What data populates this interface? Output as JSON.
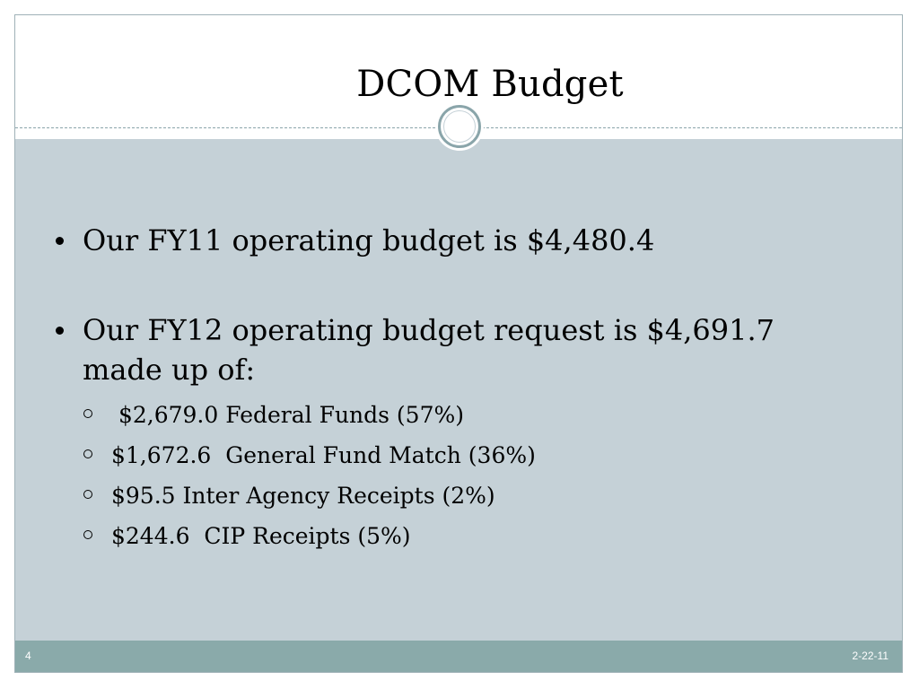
{
  "slide": {
    "title": "DCOM Budget",
    "bullets": [
      {
        "text": "Our FY11 operating budget is $4,480.4"
      },
      {
        "text": "Our FY12 operating budget request is $4,691.7 made up of:",
        "sub_items": [
          " $2,679.0 Federal Funds (57%)",
          "$1,672.6  General Fund Match (36%)",
          "$95.5 Inter Agency Receipts (2%)",
          "$244.6  CIP Receipts (5%)"
        ]
      }
    ],
    "footer": {
      "slide_number": "4",
      "date": "2-22-11"
    }
  },
  "colors": {
    "content_background": "#c5d1d7",
    "footer_background": "#8aaaaa",
    "accent": "#8aa5aa",
    "text": "#000000"
  },
  "icons": {
    "ornament": "circle-ring-ornament",
    "bullet": "filled-dot",
    "sub_bullet": "hollow-circle"
  }
}
